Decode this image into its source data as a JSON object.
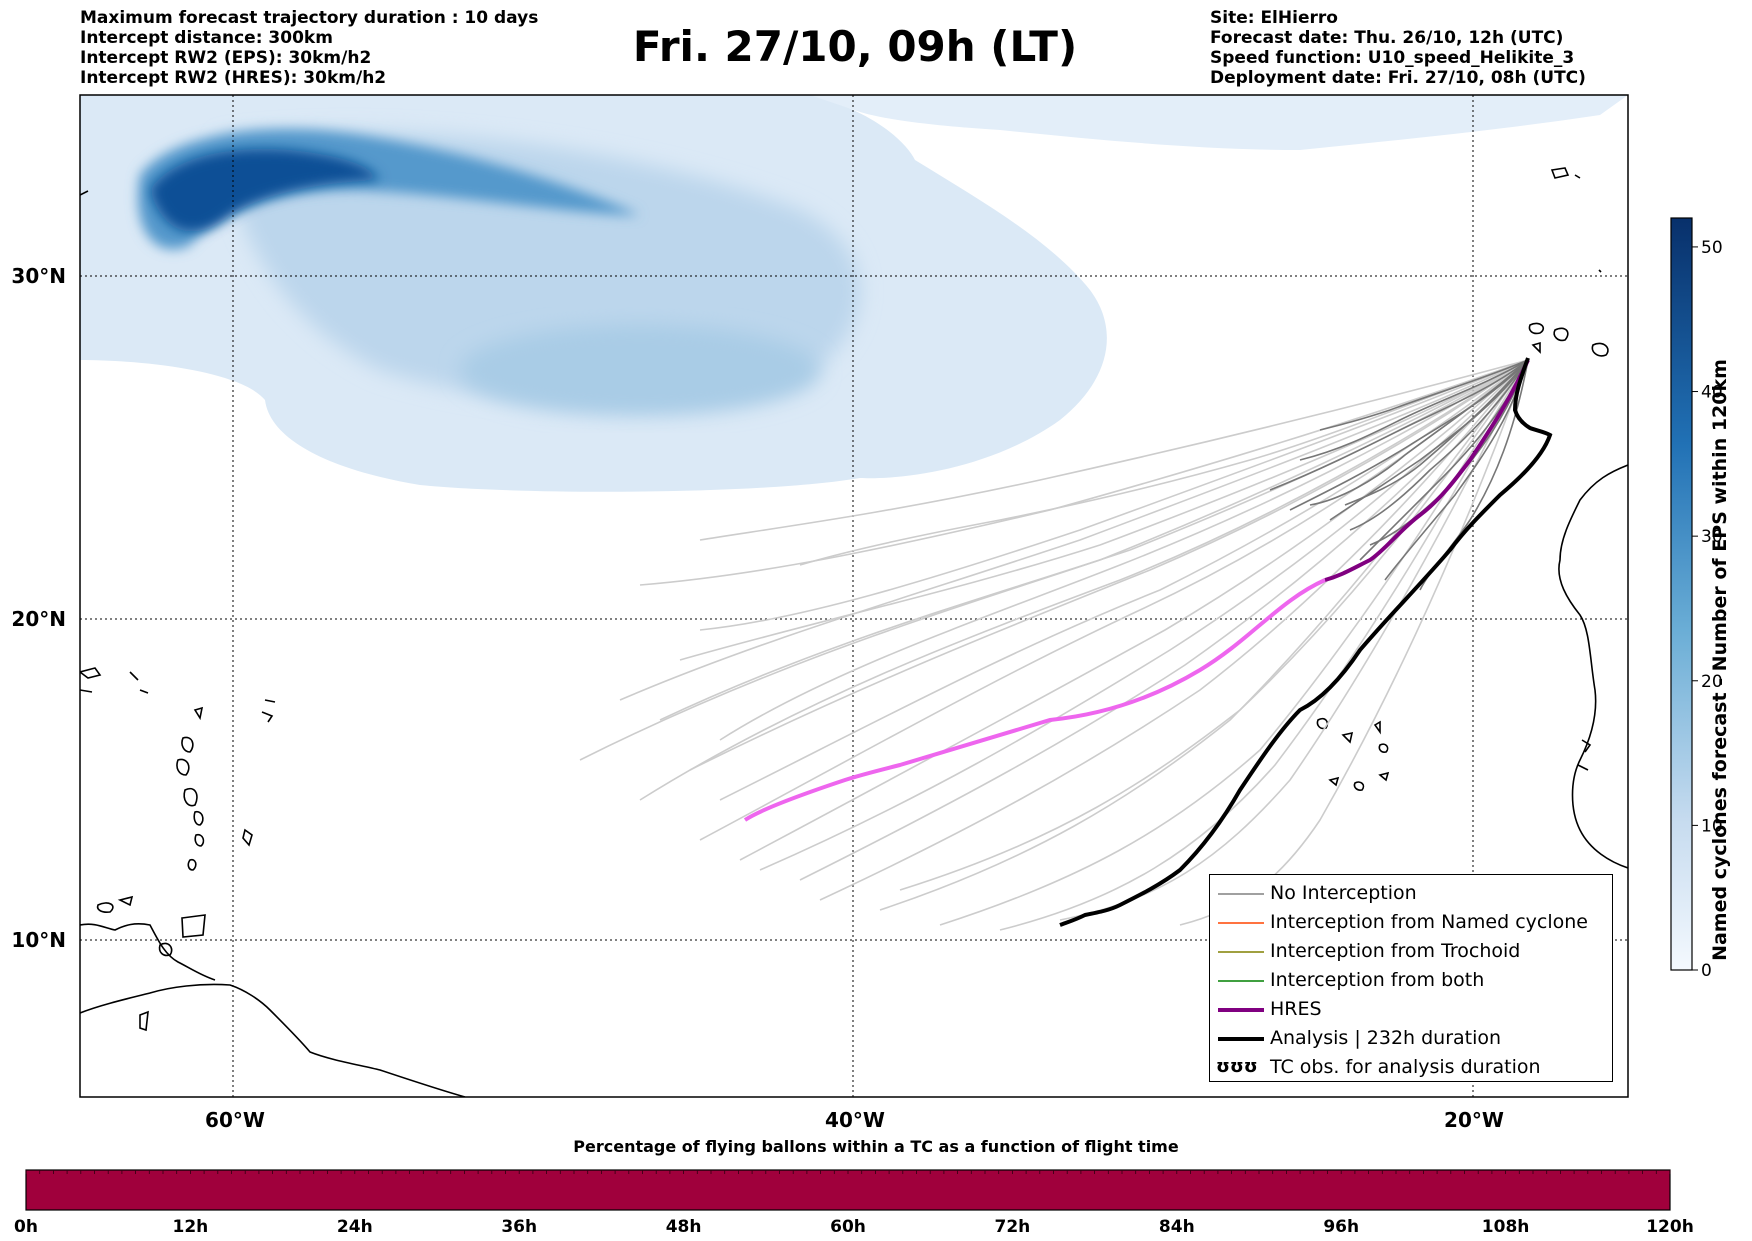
{
  "title": "Fri. 27/10, 09h (LT)",
  "info_left": [
    "Maximum forecast trajectory duration : 10 days",
    "Intercept distance: 300km",
    "Intercept RW2 (EPS):  30km/h2",
    "Intercept RW2 (HRES): 30km/h2"
  ],
  "info_right": [
    "Site: ElHierro",
    "Forecast date: Thu. 26/10, 12h (UTC)",
    "Speed function: U10_speed_Helikite_3",
    "Deployment date: Fri. 27/10, 08h (UTC)"
  ],
  "map": {
    "lat_labels": [
      "30°N",
      "20°N",
      "10°N"
    ],
    "lon_labels": [
      "60°W",
      "40°W",
      "20°W"
    ]
  },
  "legend": [
    {
      "label": "No Interception",
      "color": "#808080",
      "kind": "thin"
    },
    {
      "label": "Interception from Named cyclone",
      "color": "#ff4500",
      "kind": "thin"
    },
    {
      "label": "Interception from Trochoid",
      "color": "#808000",
      "kind": "thin"
    },
    {
      "label": "Interception from both",
      "color": "#008000",
      "kind": "thin"
    },
    {
      "label": "HRES",
      "color": "#800080",
      "kind": "thick"
    },
    {
      "label": "Analysis | 232h duration",
      "color": "#000000",
      "kind": "thick"
    },
    {
      "label": "TC obs. for analysis duration",
      "color": "#000000",
      "kind": "symbol",
      "symbol": "ʊʊʊ"
    }
  ],
  "colorbar": {
    "label": "Named cyclones forecast - Number of EPS within 120km",
    "ticks": [
      "0",
      "10",
      "20",
      "30",
      "40",
      "50"
    ],
    "tick_values": [
      0,
      10,
      20,
      30,
      40,
      50
    ],
    "max": 52,
    "colors": [
      "#eef5fc",
      "#08306b"
    ]
  },
  "bottom_bar": {
    "title": "Percentage of flying ballons within a TC as a function of flight time",
    "ticks": [
      "0h",
      "12h",
      "24h",
      "36h",
      "48h",
      "60h",
      "72h",
      "84h",
      "96h",
      "108h",
      "120h"
    ],
    "color": "#a0003c"
  },
  "colors": {
    "hres_purple": "#800080",
    "hres_pink": "#ee66ee",
    "analysis": "#000000",
    "eps_light": "#cccccc",
    "eps_dark": "#707070"
  }
}
